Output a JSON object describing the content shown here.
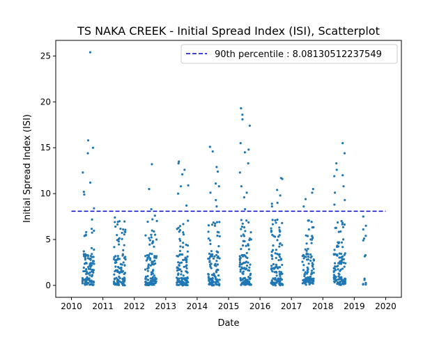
{
  "chart_data": {
    "type": "scatter",
    "title": "TS NAKA CREEK - Initial Spread Index (ISI), Scatterplot",
    "xlabel": "Date",
    "ylabel": "Initial Spread Index (ISI)",
    "xlim": [
      2009.5,
      2020.5
    ],
    "ylim": [
      -1.3,
      26.7
    ],
    "x_ticks": [
      2010,
      2011,
      2012,
      2013,
      2014,
      2015,
      2016,
      2017,
      2018,
      2019,
      2020
    ],
    "y_ticks": [
      0,
      5,
      10,
      15,
      20,
      25
    ],
    "point_color": "#1f77b4",
    "legend_placement": "top-right",
    "reference_line": {
      "label": "90th percentile : 8.08130512237549",
      "y": 8.08130512237549,
      "x_range": [
        2010,
        2020
      ],
      "color": "#0000cc",
      "style": "dashed"
    },
    "seasons": [
      {
        "start": 2010.35,
        "end": 2010.72,
        "highs": [
          25.4,
          15.8,
          15.0,
          14.4,
          12.3,
          11.2,
          10.2,
          9.9,
          8.4
        ]
      },
      {
        "start": 2011.35,
        "end": 2011.72,
        "highs": [
          7.4,
          6.9,
          6.4,
          6.1
        ]
      },
      {
        "start": 2012.35,
        "end": 2012.72,
        "highs": [
          13.2,
          10.5,
          8.3,
          7.6,
          7.2
        ]
      },
      {
        "start": 2013.35,
        "end": 2013.72,
        "highs": [
          13.5,
          13.3,
          12.6,
          12.1,
          10.9,
          10.8,
          10.0,
          8.7
        ]
      },
      {
        "start": 2014.35,
        "end": 2014.72,
        "highs": [
          15.1,
          14.6,
          12.9,
          12.4,
          11.1,
          10.8,
          10.1,
          9.3,
          8.6
        ]
      },
      {
        "start": 2015.35,
        "end": 2015.72,
        "highs": [
          19.3,
          18.6,
          18.1,
          17.4,
          15.5,
          14.8,
          14.5,
          13.3,
          12.3,
          10.8,
          10.1,
          9.6,
          8.3
        ]
      },
      {
        "start": 2016.35,
        "end": 2016.72,
        "highs": [
          11.7,
          11.6,
          10.4,
          9.8,
          9.0,
          8.9,
          8.6
        ]
      },
      {
        "start": 2017.35,
        "end": 2017.72,
        "highs": [
          10.5,
          10.1,
          9.4,
          8.6
        ]
      },
      {
        "start": 2018.35,
        "end": 2018.72,
        "highs": [
          15.5,
          14.4,
          13.3,
          12.6,
          12.0,
          11.9,
          10.8,
          10.1,
          9.3,
          8.8
        ]
      },
      {
        "start": 2019.28,
        "end": 2019.38,
        "highs": [
          7.5,
          6.5,
          6.1,
          5.4,
          5.1,
          4.9
        ]
      }
    ]
  }
}
